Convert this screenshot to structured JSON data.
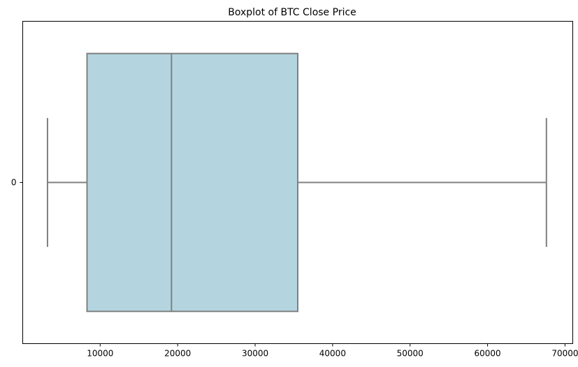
{
  "chart_data": {
    "type": "boxplot",
    "title": "Boxplot of BTC Close Price",
    "orientation": "horizontal",
    "xlabel": "",
    "ylabel": "",
    "xlim": [
      0,
      71000
    ],
    "x_ticks": [
      10000,
      20000,
      30000,
      40000,
      50000,
      60000,
      70000
    ],
    "x_tick_labels": [
      "10000",
      "20000",
      "30000",
      "40000",
      "50000",
      "60000",
      "70000"
    ],
    "categories": [
      "0"
    ],
    "boxes": [
      {
        "category": "0",
        "whisker_low": 3200,
        "q1": 8300,
        "median": 19200,
        "q3": 35500,
        "whisker_high": 67600
      }
    ],
    "grid": false,
    "colors": {
      "box_fill": "#b4d5e0",
      "line": "#808080",
      "axes": "#000000"
    }
  }
}
